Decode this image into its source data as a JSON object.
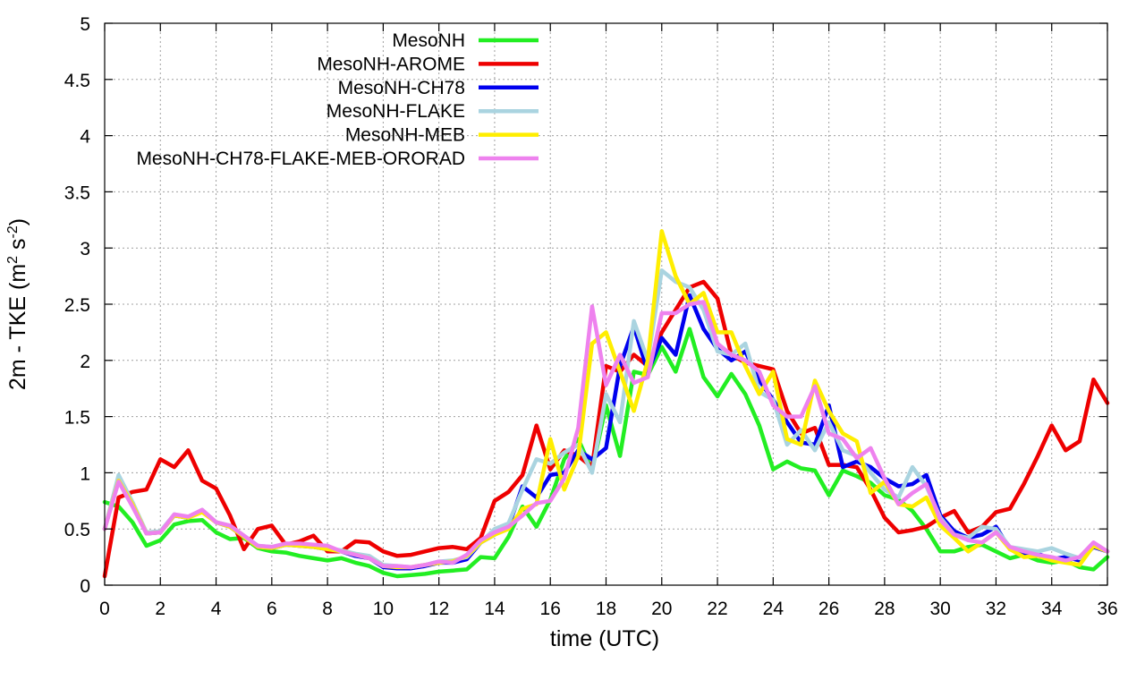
{
  "chart_data": {
    "type": "line",
    "xlabel": "time (UTC)",
    "ylabel": "2m - TKE (m² s⁻²)",
    "ylabel_parts": {
      "pre": "2m - TKE (m",
      "sup1": "2",
      "mid": " s",
      "sup2": "-2",
      "post": ")"
    },
    "xlim": [
      0,
      36
    ],
    "ylim": [
      0,
      5
    ],
    "xticks": [
      "0",
      "2",
      "4",
      "6",
      "8",
      "10",
      "12",
      "14",
      "16",
      "18",
      "20",
      "22",
      "24",
      "26",
      "28",
      "30",
      "32",
      "34",
      "36"
    ],
    "yticks": [
      "0",
      "0.5",
      "1",
      "1.5",
      "2",
      "2.5",
      "3",
      "3.5",
      "4",
      "4.5",
      "5"
    ],
    "grid": true,
    "legend_position": "top-left",
    "series": [
      {
        "name": "MesoNH",
        "color": "#22ee22",
        "x": [
          0,
          0.5,
          1,
          1.5,
          2,
          2.5,
          3,
          3.5,
          4,
          4.5,
          5,
          5.5,
          6,
          6.5,
          7,
          7.5,
          8,
          8.5,
          9,
          9.5,
          10,
          10.5,
          11,
          11.5,
          12,
          12.5,
          13,
          13.5,
          14,
          14.5,
          15,
          15.5,
          16,
          16.5,
          17,
          17.5,
          18,
          18.5,
          19,
          19.5,
          20,
          20.5,
          21,
          21.5,
          22,
          22.5,
          23,
          23.5,
          24,
          24.5,
          25,
          25.5,
          26,
          26.5,
          27,
          27.5,
          28,
          28.5,
          29,
          29.5,
          30,
          30.5,
          31,
          31.5,
          32,
          32.5,
          33,
          33.5,
          34,
          34.5,
          35,
          35.5,
          36
        ],
        "y": [
          0.74,
          0.7,
          0.56,
          0.35,
          0.4,
          0.54,
          0.57,
          0.58,
          0.47,
          0.41,
          0.42,
          0.33,
          0.3,
          0.29,
          0.26,
          0.24,
          0.22,
          0.24,
          0.2,
          0.17,
          0.11,
          0.08,
          0.09,
          0.1,
          0.12,
          0.13,
          0.14,
          0.25,
          0.24,
          0.43,
          0.7,
          0.52,
          0.76,
          1.12,
          1.3,
          1.02,
          1.6,
          1.15,
          1.9,
          1.87,
          2.12,
          1.9,
          2.28,
          1.85,
          1.68,
          1.88,
          1.7,
          1.42,
          1.03,
          1.1,
          1.04,
          1.02,
          0.8,
          1.02,
          0.97,
          0.91,
          0.8,
          0.76,
          0.66,
          0.5,
          0.3,
          0.3,
          0.34,
          0.36,
          0.3,
          0.24,
          0.27,
          0.22,
          0.2,
          0.22,
          0.16,
          0.14,
          0.25
        ]
      },
      {
        "name": "MesoNH-AROME",
        "color": "#ee0000",
        "x": [
          0,
          0.5,
          1,
          1.5,
          2,
          2.5,
          3,
          3.5,
          4,
          4.5,
          5,
          5.5,
          6,
          6.5,
          7,
          7.5,
          8,
          8.5,
          9,
          9.5,
          10,
          10.5,
          11,
          11.5,
          12,
          12.5,
          13,
          13.5,
          14,
          14.5,
          15,
          15.5,
          16,
          16.5,
          17,
          17.5,
          18,
          18.5,
          19,
          19.5,
          20,
          20.5,
          21,
          21.5,
          22,
          22.5,
          23,
          23.5,
          24,
          24.5,
          25,
          25.5,
          26,
          26.5,
          27,
          27.5,
          28,
          28.5,
          29,
          29.5,
          30,
          30.5,
          31,
          31.5,
          32,
          32.5,
          33,
          33.5,
          34,
          34.5,
          35,
          35.5,
          36
        ],
        "y": [
          0.08,
          0.78,
          0.83,
          0.85,
          1.12,
          1.05,
          1.2,
          0.93,
          0.86,
          0.62,
          0.32,
          0.5,
          0.53,
          0.36,
          0.39,
          0.44,
          0.3,
          0.3,
          0.39,
          0.38,
          0.3,
          0.26,
          0.27,
          0.3,
          0.33,
          0.34,
          0.32,
          0.42,
          0.75,
          0.83,
          0.98,
          1.42,
          1.03,
          1.2,
          1.15,
          1.05,
          1.95,
          1.9,
          2.05,
          1.95,
          2.25,
          2.45,
          2.65,
          2.7,
          2.55,
          2.05,
          1.98,
          1.95,
          1.92,
          1.55,
          1.35,
          1.4,
          1.07,
          1.07,
          1.05,
          0.85,
          0.6,
          0.47,
          0.49,
          0.52,
          0.6,
          0.66,
          0.47,
          0.52,
          0.65,
          0.68,
          0.9,
          1.15,
          1.42,
          1.2,
          1.28,
          1.83,
          1.62
        ]
      },
      {
        "name": "MesoNH-CH78",
        "color": "#0000ee",
        "x": [
          0,
          0.5,
          1,
          1.5,
          2,
          2.5,
          3,
          3.5,
          4,
          4.5,
          5,
          5.5,
          6,
          6.5,
          7,
          7.5,
          8,
          8.5,
          9,
          9.5,
          10,
          10.5,
          11,
          11.5,
          12,
          12.5,
          13,
          13.5,
          14,
          14.5,
          15,
          15.5,
          16,
          16.5,
          17,
          17.5,
          18,
          18.5,
          19,
          19.5,
          20,
          20.5,
          21,
          21.5,
          22,
          22.5,
          23,
          23.5,
          24,
          24.5,
          25,
          25.5,
          26,
          26.5,
          27,
          27.5,
          28,
          28.5,
          29,
          29.5,
          30,
          30.5,
          31,
          31.5,
          32,
          32.5,
          33,
          33.5,
          34,
          34.5,
          35,
          35.5,
          36
        ],
        "y": [
          0.5,
          0.95,
          0.72,
          0.46,
          0.47,
          0.62,
          0.6,
          0.66,
          0.56,
          0.52,
          0.43,
          0.34,
          0.33,
          0.36,
          0.35,
          0.34,
          0.32,
          0.3,
          0.26,
          0.24,
          0.16,
          0.15,
          0.15,
          0.17,
          0.2,
          0.2,
          0.23,
          0.38,
          0.45,
          0.52,
          0.88,
          0.78,
          0.98,
          1.0,
          1.2,
          1.12,
          1.22,
          1.95,
          2.3,
          1.9,
          2.2,
          2.05,
          2.58,
          2.28,
          2.1,
          2.0,
          2.08,
          1.82,
          1.65,
          1.45,
          1.27,
          1.25,
          1.6,
          1.05,
          1.1,
          1.05,
          0.95,
          0.88,
          0.9,
          0.98,
          0.62,
          0.48,
          0.42,
          0.45,
          0.52,
          0.32,
          0.28,
          0.28,
          0.23,
          0.25,
          0.22,
          0.34,
          0.3
        ]
      },
      {
        "name": "MesoNH-FLAKE",
        "color": "#aad4e0",
        "x": [
          0,
          0.5,
          1,
          1.5,
          2,
          2.5,
          3,
          3.5,
          4,
          4.5,
          5,
          5.5,
          6,
          6.5,
          7,
          7.5,
          8,
          8.5,
          9,
          9.5,
          10,
          10.5,
          11,
          11.5,
          12,
          12.5,
          13,
          13.5,
          14,
          14.5,
          15,
          15.5,
          16,
          16.5,
          17,
          17.5,
          18,
          18.5,
          19,
          19.5,
          20,
          20.5,
          21,
          21.5,
          22,
          22.5,
          23,
          23.5,
          24,
          24.5,
          25,
          25.5,
          26,
          26.5,
          27,
          27.5,
          28,
          28.5,
          29,
          29.5,
          30,
          30.5,
          31,
          31.5,
          32,
          32.5,
          33,
          33.5,
          34,
          34.5,
          35,
          35.5,
          36
        ],
        "y": [
          0.5,
          0.98,
          0.74,
          0.47,
          0.48,
          0.63,
          0.6,
          0.67,
          0.56,
          0.53,
          0.44,
          0.35,
          0.34,
          0.37,
          0.36,
          0.35,
          0.33,
          0.31,
          0.28,
          0.26,
          0.18,
          0.17,
          0.16,
          0.18,
          0.21,
          0.22,
          0.25,
          0.38,
          0.5,
          0.55,
          0.85,
          1.12,
          1.08,
          1.18,
          1.25,
          1.0,
          1.7,
          1.45,
          2.35,
          2.0,
          2.8,
          2.7,
          2.65,
          2.45,
          2.08,
          2.05,
          2.15,
          1.72,
          1.65,
          1.25,
          1.38,
          1.2,
          1.45,
          1.2,
          1.15,
          1.0,
          0.85,
          0.78,
          1.05,
          0.88,
          0.6,
          0.45,
          0.42,
          0.52,
          0.5,
          0.34,
          0.32,
          0.3,
          0.33,
          0.28,
          0.24,
          0.35,
          0.3
        ]
      },
      {
        "name": "MesoNH-MEB",
        "color": "#ffee00",
        "x": [
          0,
          0.5,
          1,
          1.5,
          2,
          2.5,
          3,
          3.5,
          4,
          4.5,
          5,
          5.5,
          6,
          6.5,
          7,
          7.5,
          8,
          8.5,
          9,
          9.5,
          10,
          10.5,
          11,
          11.5,
          12,
          12.5,
          13,
          13.5,
          14,
          14.5,
          15,
          15.5,
          16,
          16.5,
          17,
          17.5,
          18,
          18.5,
          19,
          19.5,
          20,
          20.5,
          21,
          21.5,
          22,
          22.5,
          23,
          23.5,
          24,
          24.5,
          25,
          25.5,
          26,
          26.5,
          27,
          27.5,
          28,
          28.5,
          29,
          29.5,
          30,
          30.5,
          31,
          31.5,
          32,
          32.5,
          33,
          33.5,
          34,
          34.5,
          35,
          35.5,
          36
        ],
        "y": [
          0.5,
          0.93,
          0.72,
          0.46,
          0.47,
          0.62,
          0.6,
          0.65,
          0.56,
          0.52,
          0.43,
          0.34,
          0.33,
          0.36,
          0.35,
          0.34,
          0.32,
          0.3,
          0.27,
          0.24,
          0.17,
          0.16,
          0.16,
          0.18,
          0.2,
          0.21,
          0.26,
          0.38,
          0.45,
          0.5,
          0.68,
          0.72,
          1.3,
          0.85,
          1.15,
          2.15,
          2.25,
          1.9,
          1.55,
          2.0,
          3.15,
          2.75,
          2.5,
          2.6,
          2.25,
          2.25,
          1.95,
          1.7,
          1.9,
          1.3,
          1.25,
          1.82,
          1.55,
          1.35,
          1.28,
          0.82,
          0.92,
          0.72,
          0.7,
          0.78,
          0.53,
          0.42,
          0.3,
          0.38,
          0.47,
          0.32,
          0.25,
          0.26,
          0.22,
          0.2,
          0.18,
          0.35,
          0.3
        ]
      },
      {
        "name": "MesoNH-CH78-FLAKE-MEB-ORORAD",
        "color": "#ee82ee",
        "x": [
          0,
          0.5,
          1,
          1.5,
          2,
          2.5,
          3,
          3.5,
          4,
          4.5,
          5,
          5.5,
          6,
          6.5,
          7,
          7.5,
          8,
          8.5,
          9,
          9.5,
          10,
          10.5,
          11,
          11.5,
          12,
          12.5,
          13,
          13.5,
          14,
          14.5,
          15,
          15.5,
          16,
          16.5,
          17,
          17.5,
          18,
          18.5,
          19,
          19.5,
          20,
          20.5,
          21,
          21.5,
          22,
          22.5,
          23,
          23.5,
          24,
          24.5,
          25,
          25.5,
          26,
          26.5,
          27,
          27.5,
          28,
          28.5,
          29,
          29.5,
          30,
          30.5,
          31,
          31.5,
          32,
          32.5,
          33,
          33.5,
          34,
          34.5,
          35,
          35.5,
          36
        ],
        "y": [
          0.5,
          0.92,
          0.7,
          0.46,
          0.47,
          0.63,
          0.61,
          0.67,
          0.56,
          0.53,
          0.44,
          0.35,
          0.34,
          0.37,
          0.37,
          0.36,
          0.35,
          0.3,
          0.27,
          0.24,
          0.17,
          0.17,
          0.16,
          0.18,
          0.21,
          0.2,
          0.27,
          0.4,
          0.47,
          0.52,
          0.62,
          0.73,
          0.75,
          0.95,
          1.4,
          2.48,
          1.78,
          2.05,
          1.8,
          1.85,
          2.42,
          2.42,
          2.5,
          2.52,
          2.15,
          2.05,
          2.0,
          1.9,
          1.6,
          1.5,
          1.5,
          1.77,
          1.35,
          1.3,
          1.13,
          1.22,
          0.95,
          0.72,
          0.82,
          0.9,
          0.58,
          0.45,
          0.4,
          0.38,
          0.47,
          0.34,
          0.3,
          0.27,
          0.25,
          0.22,
          0.25,
          0.38,
          0.3
        ]
      }
    ]
  }
}
